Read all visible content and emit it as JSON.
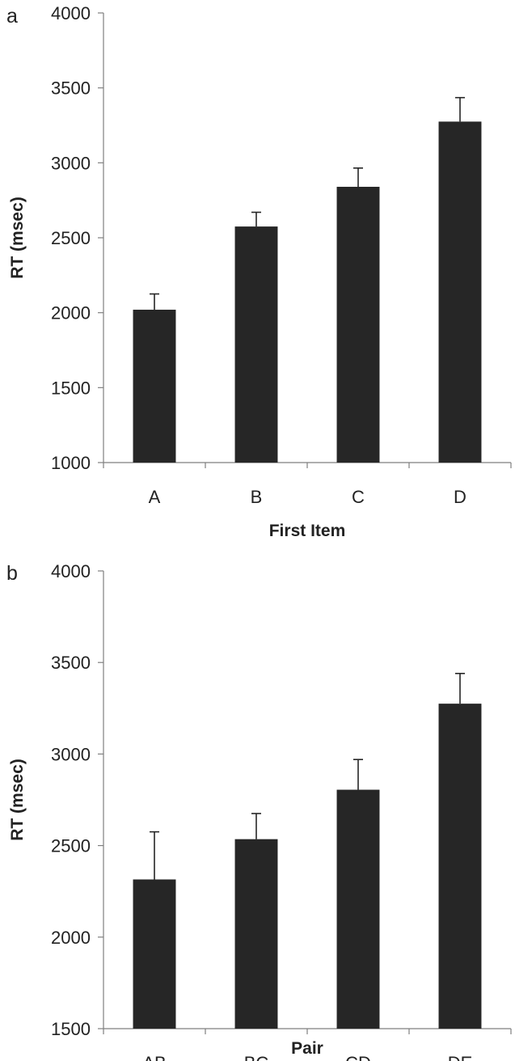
{
  "chart_data": [
    {
      "type": "bar",
      "panel_label": "a",
      "title": "",
      "xlabel": "First Item",
      "ylabel": "RT (msec)",
      "categories": [
        "A",
        "B",
        "C",
        "D"
      ],
      "values": [
        2020,
        2575,
        2840,
        3275
      ],
      "errors": [
        105,
        95,
        125,
        160
      ],
      "ylim": [
        1000,
        4000
      ],
      "yticks": [
        1000,
        1500,
        2000,
        2500,
        3000,
        3500,
        4000
      ],
      "grid": false,
      "legend": "none",
      "bar_color": "#262626"
    },
    {
      "type": "bar",
      "panel_label": "b",
      "title": "",
      "xlabel": "Pair",
      "ylabel": "RT (msec)",
      "categories": [
        "AB",
        "BC",
        "CD",
        "DE"
      ],
      "values": [
        2315,
        2535,
        2805,
        3275
      ],
      "errors": [
        260,
        140,
        165,
        165
      ],
      "ylim": [
        1500,
        4000
      ],
      "yticks": [
        1500,
        2000,
        2500,
        3000,
        3500,
        4000
      ],
      "grid": false,
      "legend": "none",
      "bar_color": "#262626"
    }
  ]
}
